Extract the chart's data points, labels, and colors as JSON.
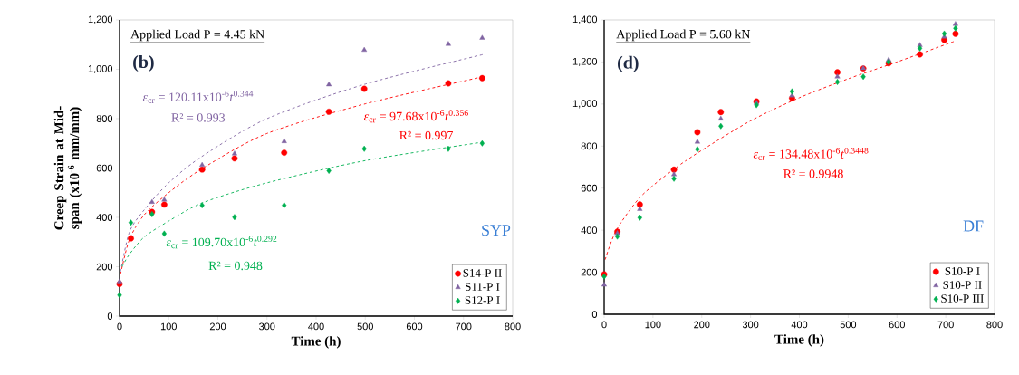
{
  "chart_data": [
    {
      "type": "scatter",
      "xlabel": "Time (h)",
      "ylabel": "Creep Strain at Mid-span (x10$^{-6}$ mm/mm)",
      "xlim": [
        0,
        800
      ],
      "xticks": [
        0,
        100,
        200,
        300,
        400,
        500,
        600,
        700,
        800
      ],
      "ylim": [
        0,
        1200
      ],
      "yticks": [
        0,
        200,
        400,
        600,
        800,
        {
          "value": 1000,
          "label": "1,000"
        },
        {
          "value": 1200,
          "label": "1,200"
        }
      ],
      "legend": "bottom right",
      "annotations": [
        "Applied Load P = 4.45 kN",
        "(b)",
        "*ε*$_{cr}$ = 120.11x10$^{-6}$*t*$^{0.344}$",
        "R² = 0.993",
        "*ε*$_{cr}$ = 97.68x10$^{-6}$*t*$^{0.356}$",
        "R² = 0.997",
        "*ε*$_{cr}$ = 109.70x10$^{-6}$*t*$^{0.292}$",
        "R² = 0.948",
        "SYP"
      ],
      "series": [
        {
          "name": "S14-P II",
          "color": "#ff0000",
          "marker": "circle",
          "x": [
            0,
            23,
            66,
            91,
            168,
            234,
            335,
            426,
            498,
            669,
            738
          ],
          "values": [
            130,
            315,
            422,
            452,
            594,
            639,
            662,
            828,
            921,
            943,
            964
          ]
        },
        {
          "name": "S11-P I",
          "color": "#8064a2",
          "marker": "triangle",
          "x": [
            0,
            23,
            66,
            91,
            168,
            234,
            335,
            426,
            498,
            669,
            738
          ],
          "values": [
            140,
            null,
            462,
            471,
            612,
            658,
            708,
            938,
            1078,
            1102,
            1127
          ]
        },
        {
          "name": "S12-P I",
          "color": "#00b050",
          "marker": "diamond",
          "x": [
            0,
            23,
            66,
            91,
            168,
            234,
            335,
            426,
            498,
            669,
            738
          ],
          "values": [
            85,
            379,
            413,
            334,
            449,
            401,
            449,
            589,
            678,
            678,
            700
          ]
        },
        {
          "type": "line",
          "color": "#8064a2",
          "line_style": "dashed",
          "x": [
            2,
            20,
            50,
            100,
            170,
            300,
            500,
            740
          ],
          "values": [
            180,
            340,
            430,
            540,
            650,
            800,
            940,
            1060
          ]
        },
        {
          "type": "line",
          "color": "#ff0000",
          "line_style": "dashed",
          "x": [
            2,
            20,
            50,
            100,
            170,
            300,
            500,
            740
          ],
          "values": [
            170,
            310,
            410,
            500,
            600,
            740,
            860,
            970
          ]
        },
        {
          "type": "line",
          "color": "#00b050",
          "line_style": "dashed",
          "x": [
            5,
            20,
            50,
            100,
            170,
            300,
            500,
            740
          ],
          "values": [
            200,
            250,
            320,
            385,
            460,
            540,
            630,
            705
          ]
        }
      ]
    },
    {
      "type": "scatter",
      "xlabel": "Time (h)",
      "xlim": [
        0,
        800
      ],
      "xticks": [
        0,
        100,
        200,
        300,
        400,
        500,
        600,
        700,
        800
      ],
      "ylim": [
        0,
        1400
      ],
      "yticks": [
        0,
        200,
        400,
        600,
        800,
        {
          "value": 1000,
          "label": "1,000"
        },
        {
          "value": 1200,
          "label": "1,200"
        },
        {
          "value": 1400,
          "label": "1,400"
        }
      ],
      "legend": "bottom right",
      "annotations": [
        "Applied Load P = 5.60 kN",
        "(d)",
        "*ε*$_{cr}$ = 134.48x10$^{-6}$*t*$^{0.3448}$",
        "R² = 0.9948",
        "DF"
      ],
      "series": [
        {
          "name": "S10-P I",
          "color": "#ff0000",
          "marker": "circle",
          "x": [
            0,
            27,
            73,
            143,
            191,
            239,
            312,
            385,
            478,
            531,
            583,
            647,
            697,
            720
          ],
          "values": [
            190,
            393,
            522,
            688,
            866,
            962,
            1012,
            1028,
            1151,
            1169,
            1194,
            1236,
            1305,
            1334
          ]
        },
        {
          "name": "S10-P II",
          "color": "#8064a2",
          "marker": "triangle",
          "x": [
            0,
            27,
            73,
            143,
            191,
            239,
            312,
            385,
            478,
            531,
            583,
            647,
            697,
            720
          ],
          "values": [
            140,
            385,
            500,
            665,
            820,
            930,
            1005,
            1040,
            1130,
            1170,
            1210,
            1280,
            1320,
            1380
          ]
        },
        {
          "name": "S10-P III",
          "color": "#00b050",
          "marker": "diamond",
          "x": [
            0,
            27,
            73,
            143,
            191,
            239,
            312,
            385,
            478,
            531,
            583,
            647,
            697,
            720
          ],
          "values": [
            180,
            370,
            460,
            645,
            785,
            895,
            995,
            1060,
            1105,
            1130,
            1200,
            1265,
            1335,
            1360
          ]
        },
        {
          "type": "line",
          "color": "#ff0000",
          "line_style": "dashed",
          "x": [
            2,
            25,
            75,
            143,
            200,
            300,
            400,
            500,
            600,
            720
          ],
          "values": [
            260,
            400,
            560,
            690,
            780,
            920,
            1030,
            1120,
            1200,
            1300
          ]
        }
      ]
    }
  ]
}
